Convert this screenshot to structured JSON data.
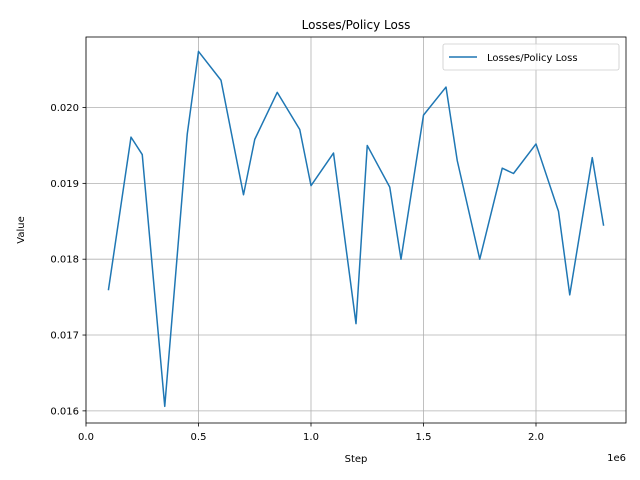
{
  "chart_data": {
    "type": "line",
    "title": "Losses/Policy Loss",
    "xlabel": "Step",
    "ylabel": "Value",
    "x_offset_text": "1e6",
    "xlim": [
      0,
      2.4
    ],
    "ylim": [
      0.01584,
      0.02093
    ],
    "x_ticks": [
      0.0,
      0.5,
      1.0,
      1.5,
      2.0
    ],
    "x_tick_labels": [
      "0.0",
      "0.5",
      "1.0",
      "1.5",
      "2.0"
    ],
    "y_ticks": [
      0.016,
      0.017,
      0.018,
      0.019,
      0.02
    ],
    "y_tick_labels": [
      "0.016",
      "0.017",
      "0.018",
      "0.019",
      "0.020"
    ],
    "grid": true,
    "legend_position": "top-right",
    "series": [
      {
        "name": "Losses/Policy Loss",
        "color": "#1f77b4",
        "x": [
          0.1,
          0.2,
          0.25,
          0.35,
          0.45,
          0.5,
          0.6,
          0.7,
          0.75,
          0.85,
          0.95,
          1.0,
          1.1,
          1.2,
          1.25,
          1.35,
          1.4,
          1.5,
          1.6,
          1.65,
          1.75,
          1.85,
          1.9,
          2.0,
          2.1,
          2.15,
          2.25,
          2.3
        ],
        "y": [
          0.0176,
          0.01961,
          0.01938,
          0.01606,
          0.01965,
          0.02074,
          0.02036,
          0.01885,
          0.01958,
          0.0202,
          0.01971,
          0.01897,
          0.0194,
          0.01715,
          0.0195,
          0.01895,
          0.018,
          0.0199,
          0.02027,
          0.0193,
          0.018,
          0.0192,
          0.01913,
          0.01952,
          0.01863,
          0.01753,
          0.01934,
          0.01845
        ]
      }
    ]
  }
}
